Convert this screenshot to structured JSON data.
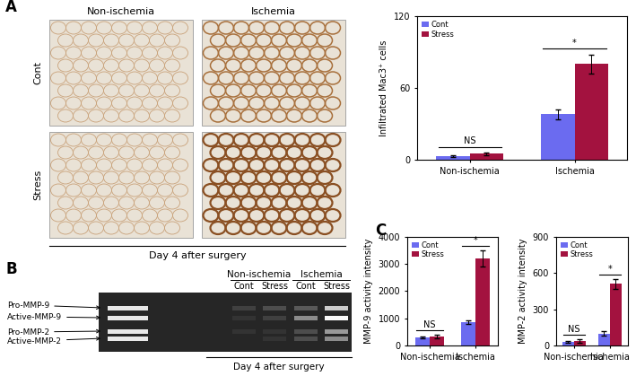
{
  "panels": {
    "A": {
      "label": "A",
      "columns": [
        "Non-ischemia",
        "Ischemia"
      ],
      "rows": [
        "Cont",
        "Stress"
      ],
      "caption": "Day 4 after surgery"
    },
    "B": {
      "label": "B",
      "groups": [
        "Non-ischemia",
        "Ischemia"
      ],
      "lanes": [
        "Cont",
        "Stress",
        "Cont",
        "Stress"
      ],
      "bands": [
        "Pro-MMP-9",
        "Active-MMP-9",
        "Pro-MMP-2",
        "Active-MMP-2"
      ],
      "caption": "Day 4 after surgery"
    },
    "C": {
      "label": "C"
    }
  },
  "chart_data": [
    {
      "type": "bar",
      "ylabel": "Infiltrated Mac3⁺ cells",
      "categories": [
        "Non-ischemia",
        "Ischemia"
      ],
      "series": [
        {
          "name": "Cont",
          "color": "#6b6bf0",
          "values": [
            3,
            38
          ],
          "errors": [
            1,
            4
          ]
        },
        {
          "name": "Stress",
          "color": "#a3123f",
          "values": [
            5,
            80
          ],
          "errors": [
            1,
            8
          ]
        }
      ],
      "annotations": [
        "NS",
        "*"
      ],
      "ylim": [
        0,
        120
      ],
      "yticks": [
        0,
        60,
        120
      ],
      "legend": "upper left"
    },
    {
      "type": "bar",
      "ylabel": "MMP-9 activity intensity",
      "categories": [
        "Non-ischemia",
        "Ischemia"
      ],
      "series": [
        {
          "name": "Cont",
          "color": "#6b6bf0",
          "values": [
            300,
            850
          ],
          "errors": [
            30,
            60
          ]
        },
        {
          "name": "Stress",
          "color": "#a3123f",
          "values": [
            330,
            3200
          ],
          "errors": [
            60,
            300
          ]
        }
      ],
      "annotations": [
        "NS",
        "*"
      ],
      "ylim": [
        0,
        4000
      ],
      "yticks": [
        0,
        1000,
        2000,
        3000,
        4000
      ],
      "legend": "upper left"
    },
    {
      "type": "bar",
      "ylabel": "MMP-2 activity intensity",
      "categories": [
        "Non-ischemia",
        "Ischemia"
      ],
      "series": [
        {
          "name": "Cont",
          "color": "#6b6bf0",
          "values": [
            30,
            100
          ],
          "errors": [
            10,
            20
          ]
        },
        {
          "name": "Stress",
          "color": "#a3123f",
          "values": [
            40,
            510
          ],
          "errors": [
            15,
            40
          ]
        }
      ],
      "annotations": [
        "NS",
        "*"
      ],
      "ylim": [
        0,
        900
      ],
      "yticks": [
        0,
        300,
        600,
        900
      ],
      "legend": "upper left"
    }
  ]
}
